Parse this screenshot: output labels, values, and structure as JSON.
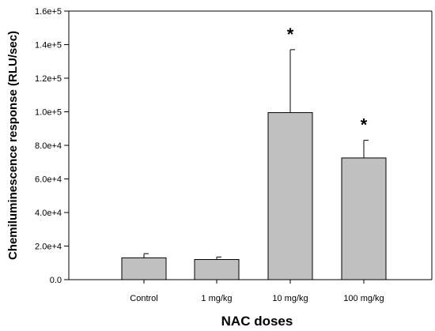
{
  "chart_data": {
    "type": "bar",
    "title": "",
    "xlabel": "NAC doses",
    "ylabel": "Chemiluminescence response (RLU/sec)",
    "categories": [
      "Control",
      "1 mg/kg",
      "10 mg/kg",
      "100 mg/kg"
    ],
    "values": [
      13000,
      12000,
      99500,
      72500
    ],
    "error_upper": [
      15500,
      13500,
      137000,
      83000
    ],
    "significance": [
      "",
      "",
      "*",
      "*"
    ],
    "ylim": [
      0,
      160000
    ],
    "yticks": [
      0,
      20000,
      40000,
      60000,
      80000,
      100000,
      120000,
      140000,
      160000
    ],
    "ytick_labels": [
      "0.0",
      "2.0e+4",
      "4.0e+4",
      "6.0e+4",
      "8.0e+4",
      "1.0e+5",
      "1.2e+5",
      "1.4e+5",
      "1.6e+5"
    ],
    "grid": false,
    "bar_color": "#c0c0c0",
    "edge_color": "#000000"
  }
}
